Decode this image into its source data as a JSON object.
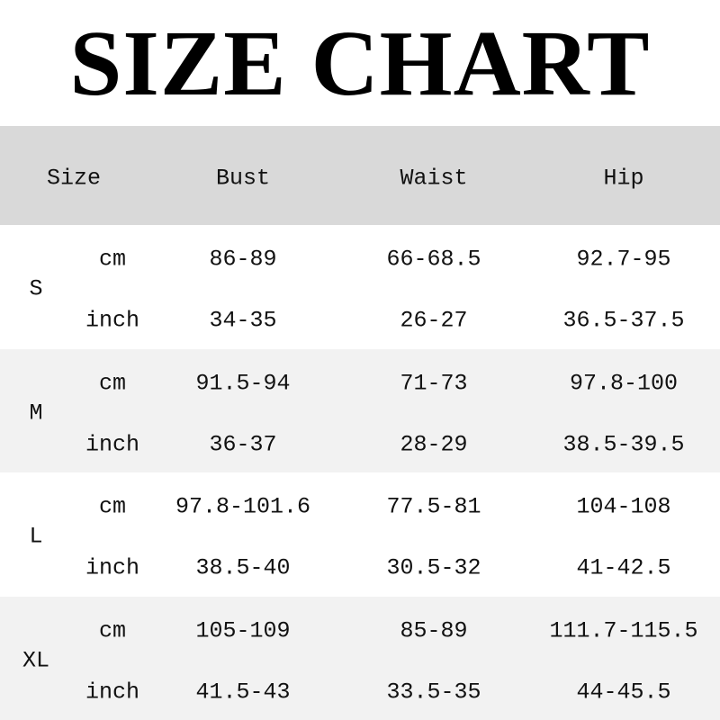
{
  "title": "SIZE CHART",
  "header": [
    "Size",
    "Bust",
    "Waist",
    "Hip"
  ],
  "colors": {
    "header_bg": "#d9d9d9",
    "alt_row_bg": "#f2f2f2"
  },
  "rows": [
    {
      "size": "S",
      "cm": {
        "unit": "cm",
        "bust": "86-89",
        "waist": "66-68.5",
        "hip": "92.7-95"
      },
      "inch": {
        "unit": "inch",
        "bust": "34-35",
        "waist": "26-27",
        "hip": "36.5-37.5"
      }
    },
    {
      "size": "M",
      "cm": {
        "unit": "cm",
        "bust": "91.5-94",
        "waist": "71-73",
        "hip": "97.8-100"
      },
      "inch": {
        "unit": "inch",
        "bust": "36-37",
        "waist": "28-29",
        "hip": "38.5-39.5"
      }
    },
    {
      "size": "L",
      "cm": {
        "unit": "cm",
        "bust": "97.8-101.6",
        "waist": "77.5-81",
        "hip": "104-108"
      },
      "inch": {
        "unit": "inch",
        "bust": "38.5-40",
        "waist": "30.5-32",
        "hip": "41-42.5"
      }
    },
    {
      "size": "XL",
      "cm": {
        "unit": "cm",
        "bust": "105-109",
        "waist": "85-89",
        "hip": "111.7-115.5"
      },
      "inch": {
        "unit": "inch",
        "bust": "41.5-43",
        "waist": "33.5-35",
        "hip": "44-45.5"
      }
    }
  ]
}
